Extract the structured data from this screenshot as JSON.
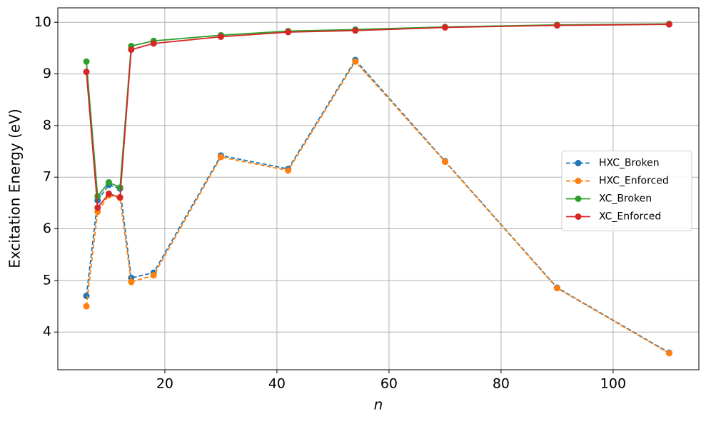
{
  "chart_data": {
    "type": "line",
    "xlabel": "n",
    "ylabel": "Excitation Energy (eV)",
    "x": [
      6,
      8,
      10,
      12,
      14,
      18,
      30,
      42,
      54,
      70,
      90,
      110
    ],
    "series": [
      {
        "name": "HXC_Broken",
        "color": "#1f77b4",
        "dashed": true,
        "values": [
          4.7,
          6.55,
          6.85,
          6.78,
          5.05,
          5.15,
          7.42,
          7.16,
          9.27,
          7.31,
          4.86,
          3.6
        ]
      },
      {
        "name": "HXC_Enforced",
        "color": "#ff7f0e",
        "dashed": true,
        "values": [
          4.5,
          6.33,
          6.65,
          6.6,
          4.97,
          5.1,
          7.39,
          7.13,
          9.24,
          7.3,
          4.85,
          3.59
        ]
      },
      {
        "name": "XC_Broken",
        "color": "#2ca02c",
        "dashed": false,
        "values": [
          9.24,
          6.63,
          6.9,
          6.8,
          9.54,
          9.64,
          9.75,
          9.83,
          9.86,
          9.91,
          9.95,
          9.97
        ]
      },
      {
        "name": "XC_Enforced",
        "color": "#d62728",
        "dashed": false,
        "values": [
          9.04,
          6.41,
          6.68,
          6.61,
          9.47,
          9.59,
          9.72,
          9.81,
          9.84,
          9.9,
          9.94,
          9.96
        ]
      }
    ],
    "xlim": [
      0.9,
      115.3
    ],
    "xticks": [
      20,
      40,
      60,
      80,
      100
    ],
    "ylim": [
      3.27,
      10.28
    ],
    "yticks": [
      4,
      5,
      6,
      7,
      8,
      9,
      10
    ],
    "grid": true,
    "legend_position": "right"
  }
}
